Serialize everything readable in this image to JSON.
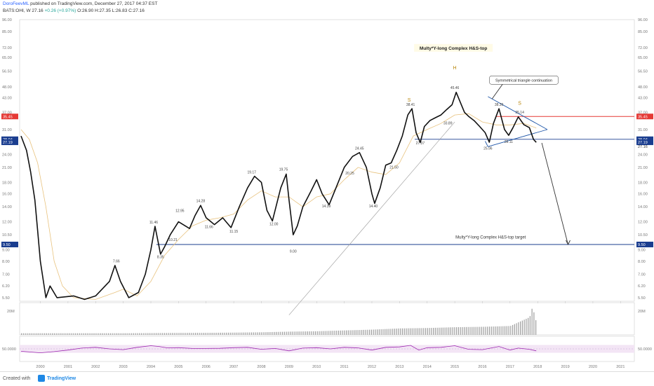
{
  "header": {
    "author": "DoroFeevML",
    "published": "published on TradingView.com, December 27, 2017 04:37 EST",
    "symbol_line": "BATS:OHI, W  27.16",
    "change": "+0.26 (+0.97%)",
    "ohlc": "O:26.90 H:27.35 L:26.83 C:27.16"
  },
  "footer": {
    "created_with": "Created with",
    "brand": "TradingView"
  },
  "colors": {
    "price_red": "#e53935",
    "price_blue": "#1a3d8f",
    "line_blue": "#1f56a8",
    "ma": "#e8c27d",
    "candle": "#111111",
    "rsi": "#9c27b0",
    "rsi_band": "#f3e5f5"
  },
  "chart_data": {
    "type": "line",
    "scale": "log",
    "ylim": [
      5.3,
      96
    ],
    "y_ticks": [
      "96.00",
      "85.00",
      "72.00",
      "65.00",
      "56.50",
      "48.00",
      "43.00",
      "37.00",
      "31.00",
      "28.00",
      "24.00",
      "21.00",
      "18.00",
      "16.00",
      "14.00",
      "12.00",
      "10.50",
      "9.00",
      "8.00",
      "7.00",
      "6.20",
      "5.50"
    ],
    "xlim": [
      1999.25,
      2021.5
    ],
    "x_ticks": [
      "2000",
      "2001",
      "2002",
      "2003",
      "2004",
      "2005",
      "2006",
      "2007",
      "2008",
      "2009",
      "2010",
      "2011",
      "2012",
      "2013",
      "2014",
      "2015",
      "2016",
      "2017",
      "2018",
      "2019",
      "2020",
      "2021"
    ],
    "series": [
      {
        "values": [
          [
            1999.3,
            29
          ],
          [
            1999.5,
            25
          ],
          [
            1999.65,
            20
          ],
          [
            1999.8,
            15
          ],
          [
            1999.9,
            11
          ],
          [
            2000.0,
            8
          ],
          [
            2000.2,
            5.5
          ],
          [
            2000.35,
            6.2
          ],
          [
            2000.6,
            5.5
          ],
          [
            2001.2,
            5.6
          ],
          [
            2001.6,
            5.4
          ],
          [
            2002.0,
            5.6
          ],
          [
            2002.5,
            6.5
          ],
          [
            2002.7,
            7.66
          ],
          [
            2002.9,
            6.5
          ],
          [
            2003.2,
            5.5
          ],
          [
            2003.55,
            5.8
          ],
          [
            2003.8,
            7
          ],
          [
            2004.0,
            9
          ],
          [
            2004.15,
            11.46
          ],
          [
            2004.35,
            8.6
          ],
          [
            2004.5,
            9.3
          ],
          [
            2004.7,
            10.5
          ],
          [
            2005.0,
            12
          ],
          [
            2005.4,
            11.2
          ],
          [
            2005.6,
            12.8
          ],
          [
            2005.8,
            14.2
          ],
          [
            2006.0,
            12.5
          ],
          [
            2006.3,
            11.66
          ],
          [
            2006.6,
            12.5
          ],
          [
            2006.9,
            11.3
          ],
          [
            2007.2,
            14
          ],
          [
            2007.5,
            17
          ],
          [
            2007.75,
            19.17
          ],
          [
            2008.0,
            18
          ],
          [
            2008.2,
            13.5
          ],
          [
            2008.4,
            12.1
          ],
          [
            2008.7,
            17
          ],
          [
            2008.9,
            19.6
          ],
          [
            2009.0,
            15
          ],
          [
            2009.15,
            10.5
          ],
          [
            2009.3,
            11.5
          ],
          [
            2009.5,
            14
          ],
          [
            2009.8,
            16.5
          ],
          [
            2010.0,
            18.5
          ],
          [
            2010.2,
            16
          ],
          [
            2010.45,
            14.3
          ],
          [
            2010.7,
            17
          ],
          [
            2011.0,
            21
          ],
          [
            2011.3,
            23.5
          ],
          [
            2011.55,
            24.45
          ],
          [
            2011.8,
            21
          ],
          [
            2012.0,
            16
          ],
          [
            2012.1,
            14.5
          ],
          [
            2012.3,
            17
          ],
          [
            2012.5,
            21.5
          ],
          [
            2012.7,
            22
          ],
          [
            2012.9,
            25
          ],
          [
            2013.1,
            29
          ],
          [
            2013.3,
            36
          ],
          [
            2013.45,
            38.41
          ],
          [
            2013.6,
            30
          ],
          [
            2013.75,
            27.1
          ],
          [
            2013.9,
            32
          ],
          [
            2014.1,
            34
          ],
          [
            2014.3,
            35
          ],
          [
            2014.5,
            36
          ],
          [
            2014.7,
            38
          ],
          [
            2014.9,
            40
          ],
          [
            2015.05,
            45.46
          ],
          [
            2015.2,
            41
          ],
          [
            2015.35,
            37
          ],
          [
            2015.5,
            35.5
          ],
          [
            2015.7,
            34
          ],
          [
            2015.9,
            32
          ],
          [
            2016.1,
            30
          ],
          [
            2016.25,
            27.2
          ],
          [
            2016.4,
            33
          ],
          [
            2016.6,
            38.39
          ],
          [
            2016.8,
            31
          ],
          [
            2016.95,
            29.2
          ],
          [
            2017.1,
            31.5
          ],
          [
            2017.3,
            35.3
          ],
          [
            2017.5,
            32.6
          ],
          [
            2017.7,
            31.6
          ],
          [
            2017.85,
            28
          ],
          [
            2017.95,
            27.16
          ]
        ]
      }
    ],
    "moving_average": [
      [
        1999.3,
        31
      ],
      [
        1999.6,
        28
      ],
      [
        1999.9,
        22
      ],
      [
        2000.2,
        14
      ],
      [
        2000.5,
        8
      ],
      [
        2000.8,
        6.2
      ],
      [
        2001.2,
        5.5
      ],
      [
        2002.0,
        5.4
      ],
      [
        2002.7,
        5.8
      ],
      [
        2003.0,
        6
      ],
      [
        2003.5,
        5.6
      ],
      [
        2004.0,
        6.5
      ],
      [
        2004.5,
        8.5
      ],
      [
        2005.0,
        10
      ],
      [
        2005.5,
        11.5
      ],
      [
        2006.0,
        12.2
      ],
      [
        2006.5,
        12.5
      ],
      [
        2007.0,
        13
      ],
      [
        2007.5,
        15
      ],
      [
        2008.0,
        16.5
      ],
      [
        2008.5,
        15.5
      ],
      [
        2009.0,
        15.5
      ],
      [
        2009.5,
        14
      ],
      [
        2010.0,
        15.5
      ],
      [
        2010.5,
        16
      ],
      [
        2011.0,
        18.5
      ],
      [
        2011.5,
        21
      ],
      [
        2012.0,
        20
      ],
      [
        2012.5,
        19.5
      ],
      [
        2013.0,
        22
      ],
      [
        2013.5,
        29
      ],
      [
        2014.0,
        31
      ],
      [
        2014.5,
        33
      ],
      [
        2015.0,
        36
      ],
      [
        2015.5,
        36.5
      ],
      [
        2016.0,
        33.5
      ],
      [
        2016.5,
        32.5
      ],
      [
        2017.0,
        32.5
      ],
      [
        2017.5,
        33
      ],
      [
        2017.95,
        31.5
      ]
    ],
    "price_labels": [
      {
        "text": "35.45",
        "value": 35.45,
        "kind": "red"
      },
      {
        "text": "28.04",
        "value": 28.04,
        "kind": "blue"
      },
      {
        "text": "27.19",
        "value": 27.19,
        "kind": "blue"
      },
      {
        "text": "27.16",
        "value": 27.16,
        "kind": "plain"
      },
      {
        "text": "9.50",
        "value": 9.5,
        "kind": "blue"
      }
    ],
    "horizontal_lines": [
      {
        "name": "resistance",
        "value": 35.45,
        "x_from": 2016.5,
        "kind": "red"
      },
      {
        "name": "neckline",
        "value": 28.04,
        "x_from": 2013.55,
        "kind": "blue"
      },
      {
        "name": "target",
        "value": 9.5,
        "x_from": 2004.2,
        "kind": "blue"
      }
    ],
    "annotations": [
      {
        "text": "Multy*Y-long Complex H&S-top",
        "x": 2014.95,
        "y": 70.5,
        "kind": "title"
      },
      {
        "text": "Symmetrical triangle continuation",
        "x": 2017.5,
        "y": 50.8,
        "kind": "callout"
      },
      {
        "text": "Multy*Y-long Complex H&S-top target",
        "x": 2016.3,
        "y": 10.1,
        "kind": "note"
      },
      {
        "text": "S",
        "x": 2013.35,
        "y": 41.3,
        "kind": "pattern"
      },
      {
        "text": "H",
        "x": 2015.0,
        "y": 57.5,
        "kind": "pattern"
      },
      {
        "text": "S",
        "x": 2017.35,
        "y": 40.0,
        "kind": "pattern"
      }
    ],
    "value_labels": [
      {
        "text": "7.66",
        "x": 2002.75,
        "y": 7.9
      },
      {
        "text": "11.46",
        "x": 2004.1,
        "y": 11.8
      },
      {
        "text": "12.95",
        "x": 2005.05,
        "y": 13.3
      },
      {
        "text": "14.28",
        "x": 2005.8,
        "y": 14.7
      },
      {
        "text": "19.17",
        "x": 2007.65,
        "y": 19.75
      },
      {
        "text": "19.75",
        "x": 2008.8,
        "y": 20.3
      },
      {
        "text": "24.45",
        "x": 2011.55,
        "y": 25.2
      },
      {
        "text": "38.41",
        "x": 2013.4,
        "y": 39.6
      },
      {
        "text": "45.46",
        "x": 2015.0,
        "y": 47.0
      },
      {
        "text": "38.39",
        "x": 2016.6,
        "y": 39.6
      },
      {
        "text": "35.14",
        "x": 2017.35,
        "y": 36.5
      },
      {
        "text": "8.35",
        "x": 2004.35,
        "y": 8.25
      },
      {
        "text": "10.21",
        "x": 2004.8,
        "y": 9.85
      },
      {
        "text": "11.66",
        "x": 2006.1,
        "y": 11.25
      },
      {
        "text": "11.15",
        "x": 2007.0,
        "y": 10.75
      },
      {
        "text": "12.00",
        "x": 2008.45,
        "y": 11.6
      },
      {
        "text": "9.00",
        "x": 2009.15,
        "y": 8.75
      },
      {
        "text": "14.39",
        "x": 2010.35,
        "y": 13.9
      },
      {
        "text": "20.25",
        "x": 2011.2,
        "y": 19.55
      },
      {
        "text": "14.40",
        "x": 2012.05,
        "y": 13.9
      },
      {
        "text": "21.50",
        "x": 2012.8,
        "y": 20.8
      },
      {
        "text": "33.89",
        "x": 2014.75,
        "y": 32.7
      },
      {
        "text": "27.37",
        "x": 2013.75,
        "y": 26.6
      },
      {
        "text": "25.96",
        "x": 2016.2,
        "y": 25.2
      },
      {
        "text": "28.11",
        "x": 2016.95,
        "y": 27.05
      }
    ],
    "drawings": [
      {
        "name": "long-trendline",
        "from": [
          2009.0,
          4.6
        ],
        "to": [
          2015.0,
          33.5
        ]
      },
      {
        "name": "triangle-upper",
        "from": [
          2016.2,
          43.5
        ],
        "to": [
          2018.35,
          31.0
        ]
      },
      {
        "name": "triangle-lower",
        "from": [
          2016.2,
          26.0
        ],
        "to": [
          2018.35,
          31.0
        ]
      },
      {
        "name": "triangle-tail",
        "from": [
          2016.1,
          27.5
        ],
        "to": [
          2016.2,
          26.0
        ]
      },
      {
        "name": "callout-pointer",
        "from": [
          2016.8,
          50.8
        ],
        "to": [
          2016.35,
          42.5
        ]
      },
      {
        "name": "target-arrow",
        "from": [
          2018.15,
          27.0
        ],
        "to": [
          2019.1,
          9.5
        ]
      }
    ],
    "volume": {
      "tick_label": "20M",
      "values": [
        [
          1999.3,
          2
        ],
        [
          2000,
          2
        ],
        [
          2001,
          2
        ],
        [
          2002,
          2
        ],
        [
          2003,
          2
        ],
        [
          2004,
          2.2
        ],
        [
          2005,
          2.4
        ],
        [
          2006,
          2.5
        ],
        [
          2007,
          2.8
        ],
        [
          2008,
          3.2
        ],
        [
          2009,
          4
        ],
        [
          2010,
          4.5
        ],
        [
          2011,
          5.5
        ],
        [
          2012,
          6.5
        ],
        [
          2013,
          8
        ],
        [
          2014,
          8.5
        ],
        [
          2015,
          9.5
        ],
        [
          2016,
          10
        ],
        [
          2017,
          11
        ],
        [
          2017.7,
          22
        ],
        [
          2017.8,
          35
        ],
        [
          2017.95,
          14
        ]
      ]
    },
    "rsi": {
      "tick_label": "50.0000",
      "band": [
        30,
        70
      ],
      "values": [
        [
          1999.3,
          38
        ],
        [
          2000,
          30
        ],
        [
          2000.5,
          36
        ],
        [
          2001,
          44
        ],
        [
          2001.5,
          54
        ],
        [
          2002,
          58
        ],
        [
          2002.5,
          50
        ],
        [
          2003,
          46
        ],
        [
          2003.5,
          58
        ],
        [
          2004,
          66
        ],
        [
          2004.3,
          62
        ],
        [
          2004.6,
          55
        ],
        [
          2005,
          56
        ],
        [
          2005.5,
          52
        ],
        [
          2006,
          52
        ],
        [
          2006.5,
          53
        ],
        [
          2007,
          56
        ],
        [
          2007.5,
          58
        ],
        [
          2008,
          48
        ],
        [
          2008.5,
          52
        ],
        [
          2009,
          40
        ],
        [
          2009.5,
          54
        ],
        [
          2010,
          56
        ],
        [
          2010.5,
          50
        ],
        [
          2011,
          58
        ],
        [
          2011.5,
          55
        ],
        [
          2012,
          44
        ],
        [
          2012.5,
          58
        ],
        [
          2013,
          60
        ],
        [
          2013.4,
          68
        ],
        [
          2013.7,
          44
        ],
        [
          2014,
          56
        ],
        [
          2014.5,
          58
        ],
        [
          2015,
          66
        ],
        [
          2015.5,
          48
        ],
        [
          2016,
          46
        ],
        [
          2016.6,
          62
        ],
        [
          2017,
          44
        ],
        [
          2017.3,
          54
        ],
        [
          2017.7,
          48
        ],
        [
          2017.95,
          40
        ]
      ]
    }
  }
}
